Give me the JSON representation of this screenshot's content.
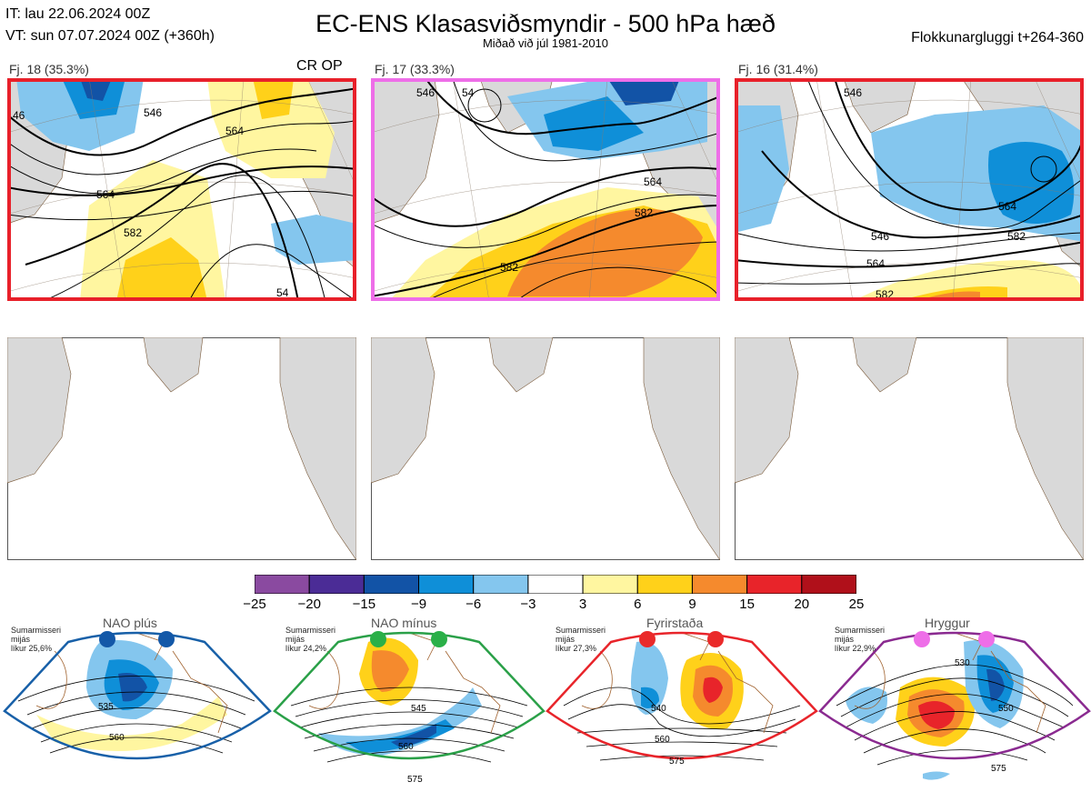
{
  "header": {
    "init_time": "IT: lau 22.06.2024 00Z",
    "valid_time": "VT: sun 07.07.2024 00Z  (+360h)",
    "title": "EC-ENS Klasasviðsmyndir - 500 hPa hæð",
    "subtitle": "Miðað við júl 1981-2010",
    "window": "Flokkunargluggi t+264-360"
  },
  "clusters": [
    {
      "label": "Fj. 18 (35.3%)",
      "extra": "CR OP",
      "border": "#e8202a",
      "contours": [
        "46",
        "546",
        "564",
        "564",
        "582",
        "54"
      ]
    },
    {
      "label": "Fj. 17 (33.3%)",
      "extra": "",
      "border": "#ee6ee8",
      "contours": [
        "546",
        "564",
        "582",
        "582",
        "54"
      ]
    },
    {
      "label": "Fj. 16 (31.4%)",
      "extra": "",
      "border": "#e8202a",
      "contours": [
        "546",
        "546",
        "564",
        "564",
        "582",
        "582"
      ]
    }
  ],
  "colorbar": {
    "colors": [
      "#8a4aa0",
      "#4b2c96",
      "#1253a6",
      "#0f8fd8",
      "#84c6ee",
      "#ffffff",
      "#fff6a0",
      "#ffd11a",
      "#f58a2d",
      "#e8242a",
      "#b0101a"
    ],
    "labels": [
      "−25",
      "−20",
      "−15",
      "−9",
      "−6",
      "−3",
      "3",
      "6",
      "9",
      "15",
      "20",
      "25"
    ]
  },
  "regimes": [
    {
      "name": "NAO plús",
      "season": "Sumarmisseri\nmijás\nlíkur 25,6%",
      "border": "#1860a8",
      "dot": "#1358a8",
      "contours": [
        "535",
        "560"
      ]
    },
    {
      "name": "NAO mínus",
      "season": "Sumarmisseri\nmijás\nlíkur 24,2%",
      "border": "#2aa048",
      "dot": "#2ab048",
      "contours": [
        "545",
        "560",
        "575"
      ]
    },
    {
      "name": "Fyrirstaða",
      "season": "Sumarmisseri\nmijás\nlíkur 27,3%",
      "border": "#e8242a",
      "dot": "#ea2a2a",
      "contours": [
        "540",
        "560",
        "575"
      ]
    },
    {
      "name": "Hryggur",
      "season": "Sumarmisseri\nmijás\nlíkur 22,9%",
      "border": "#8a2a90",
      "dot": "#ee6ee8",
      "contours": [
        "530",
        "550",
        "575"
      ]
    }
  ]
}
